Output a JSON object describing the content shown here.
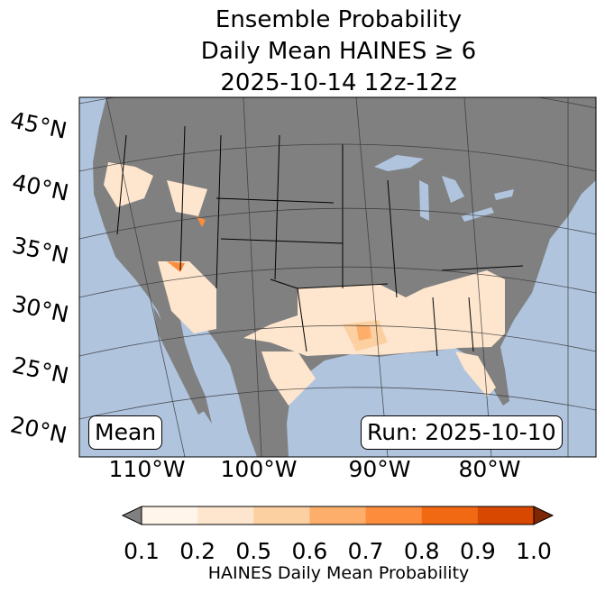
{
  "title": {
    "line1": "Ensemble Probability",
    "line2": "Daily Mean HAINES ≥ 6",
    "line3": "2025-10-14 12z-12z"
  },
  "map": {
    "ocean_color": "#b0c4de",
    "land_color": "#808080",
    "lat_labels": [
      "45°N",
      "40°N",
      "35°N",
      "30°N",
      "25°N",
      "20°N"
    ],
    "lon_labels": [
      "110°W",
      "100°W",
      "90°W",
      "80°W"
    ],
    "mean_label": "Mean",
    "run_label": "Run: 2025-10-10"
  },
  "colorbar": {
    "label": "HAINES Daily Mean Probability",
    "ticks": [
      "0.1",
      "0.2",
      "0.5",
      "0.6",
      "0.7",
      "0.8",
      "0.9",
      "1.0"
    ],
    "under_color": "#808080",
    "over_color": "#7f2704",
    "colors": [
      "#fff5eb",
      "#fee6ce",
      "#fdd0a2",
      "#fdae6b",
      "#fd8d3c",
      "#f16913",
      "#d94801"
    ]
  }
}
